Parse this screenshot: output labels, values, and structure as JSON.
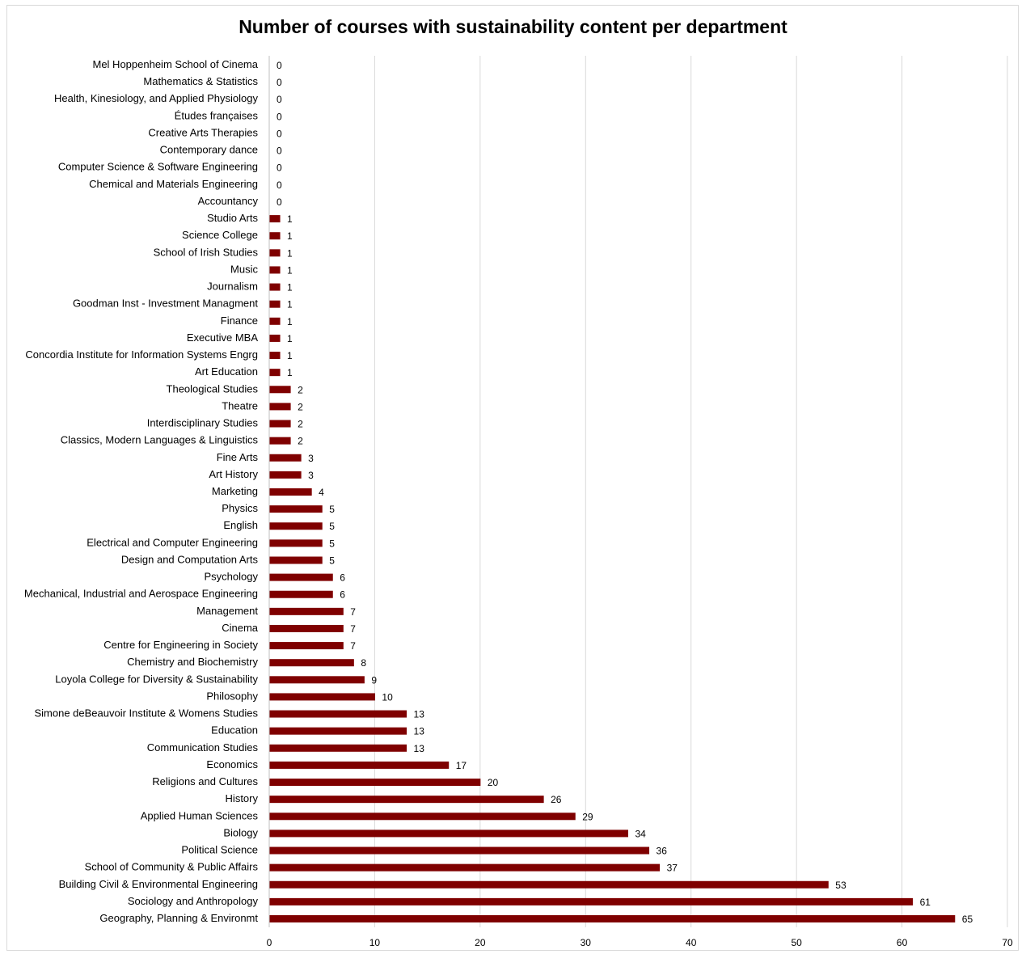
{
  "chart_data": {
    "type": "bar",
    "orientation": "horizontal",
    "title": "Number of courses with sustainability content per department",
    "xlim": [
      0,
      70
    ],
    "x_ticks": [
      0,
      10,
      20,
      30,
      40,
      50,
      60,
      70
    ],
    "grid": "vertical",
    "bar_color": "#7f0000",
    "categories": [
      "Mel Hoppenheim School of Cinema",
      "Mathematics & Statistics",
      "Health, Kinesiology, and Applied Physiology",
      "Études françaises",
      "Creative Arts Therapies",
      "Contemporary dance",
      "Computer Science & Software Engineering",
      "Chemical and Materials Engineering",
      "Accountancy",
      "Studio Arts",
      "Science College",
      "School of Irish Studies",
      "Music",
      "Journalism",
      "Goodman Inst - Investment Managment",
      "Finance",
      "Executive MBA",
      "Concordia Institute for Information Systems Engrg",
      "Art Education",
      "Theological Studies",
      "Theatre",
      "Interdisciplinary Studies",
      "Classics, Modern Languages & Linguistics",
      "Fine Arts",
      "Art History",
      "Marketing",
      "Physics",
      "English",
      "Electrical and Computer Engineering",
      "Design and Computation Arts",
      "Psychology",
      "Mechanical, Industrial and Aerospace Engineering",
      "Management",
      "Cinema",
      "Centre for Engineering in Society",
      "Chemistry and Biochemistry",
      "Loyola College for  Diversity & Sustainability",
      "Philosophy",
      "Simone deBeauvoir Institute & Womens Studies",
      "Education",
      "Communication Studies",
      "Economics",
      "Religions and Cultures",
      "History",
      "Applied Human Sciences",
      "Biology",
      "Political Science",
      "School of Community & Public Affairs",
      "Building Civil & Environmental Engineering",
      "Sociology and Anthropology",
      "Geography, Planning & Environmt"
    ],
    "values": [
      0,
      0,
      0,
      0,
      0,
      0,
      0,
      0,
      0,
      1,
      1,
      1,
      1,
      1,
      1,
      1,
      1,
      1,
      1,
      2,
      2,
      2,
      2,
      3,
      3,
      4,
      5,
      5,
      5,
      5,
      6,
      6,
      7,
      7,
      7,
      8,
      9,
      10,
      13,
      13,
      13,
      17,
      20,
      26,
      29,
      34,
      36,
      37,
      53,
      61,
      65
    ]
  }
}
